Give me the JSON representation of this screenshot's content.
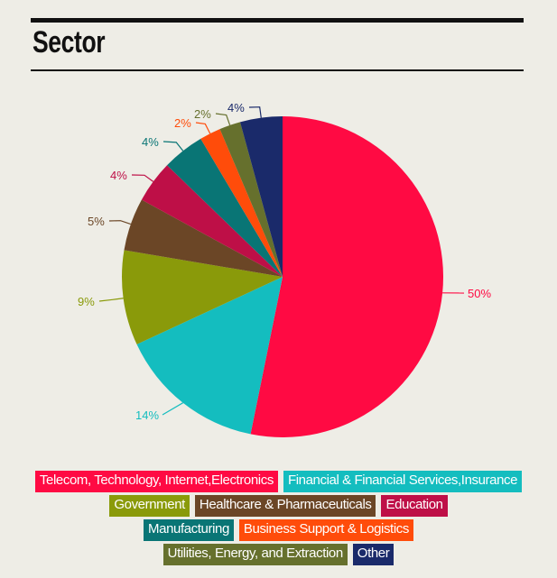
{
  "title": "Sector",
  "chart_data": {
    "type": "pie",
    "title": "Sector",
    "slices": [
      {
        "label": "Telecom, Technology, Internet,Electronics",
        "value": 50,
        "display": "50%",
        "color": "#ff0a43"
      },
      {
        "label": "Financial & Financial Services,Insurance",
        "value": 14,
        "display": "14%",
        "color": "#14bdbf"
      },
      {
        "label": "Government",
        "value": 9,
        "display": "9%",
        "color": "#8a9a0a"
      },
      {
        "label": "Healthcare & Pharmaceuticals",
        "value": 5,
        "display": "5%",
        "color": "#6b4626"
      },
      {
        "label": "Education",
        "value": 4,
        "display": "4%",
        "color": "#be0f47"
      },
      {
        "label": "Manufacturing",
        "value": 4,
        "display": "4%",
        "color": "#097575"
      },
      {
        "label": "Business Support & Logistics",
        "value": 2,
        "display": "2%",
        "color": "#ff4c0a"
      },
      {
        "label": "Utilities, Energy, and Extraction",
        "value": 2,
        "display": "2%",
        "color": "#66702d"
      },
      {
        "label": "Other",
        "value": 4,
        "display": "4%",
        "color": "#1a2a6a"
      }
    ],
    "legend_position": "bottom"
  }
}
